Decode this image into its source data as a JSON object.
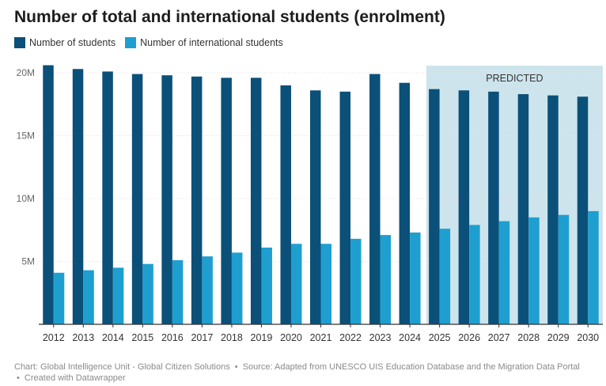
{
  "title": "Number of total and international students (enrolment)",
  "legend": [
    {
      "label": "Number of students",
      "color": "#0b5078"
    },
    {
      "label": "Number of international students",
      "color": "#1f9fcf"
    }
  ],
  "footer": {
    "chart_credit": "Chart: Global Intelligence Unit - Global Citizen Solutions",
    "source": "Source: Adapted from UNESCO UIS Education Database and the Migration Data Portal",
    "created_with": "Created with Datawrapper",
    "separator": "•"
  },
  "colors": {
    "total": "#0b5078",
    "international": "#1f9fcf",
    "predicted_bg": "#cde4ec",
    "gridline": "#e3e3e3",
    "axis": "#333333"
  },
  "chart_data": {
    "type": "bar",
    "title": "Number of total and international students (enrolment)",
    "categories": [
      "2012",
      "2013",
      "2014",
      "2015",
      "2016",
      "2017",
      "2018",
      "2019",
      "2020",
      "2021",
      "2022",
      "2023",
      "2024",
      "2025",
      "2026",
      "2027",
      "2028",
      "2029",
      "2030"
    ],
    "series": [
      {
        "name": "Number of students",
        "values": [
          20.6,
          20.3,
          20.1,
          19.9,
          19.8,
          19.7,
          19.6,
          19.6,
          19.0,
          18.6,
          18.5,
          19.9,
          19.2,
          18.7,
          18.6,
          18.5,
          18.3,
          18.2,
          18.1
        ]
      },
      {
        "name": "Number of international students",
        "values": [
          4.1,
          4.3,
          4.5,
          4.8,
          5.1,
          5.4,
          5.7,
          6.1,
          6.4,
          6.4,
          6.8,
          7.1,
          7.3,
          7.6,
          7.9,
          8.2,
          8.5,
          8.7,
          9.0
        ]
      }
    ],
    "y_unit": "M",
    "yticks": [
      "5M",
      "10M",
      "15M",
      "20M"
    ],
    "ytick_values": [
      5,
      10,
      15,
      20
    ],
    "ylim": [
      0,
      20.6
    ],
    "xlabel": "",
    "ylabel": "",
    "grid": true,
    "annotation": {
      "label": "PREDICTED",
      "from_category": "2025",
      "to_category": "2030"
    }
  }
}
